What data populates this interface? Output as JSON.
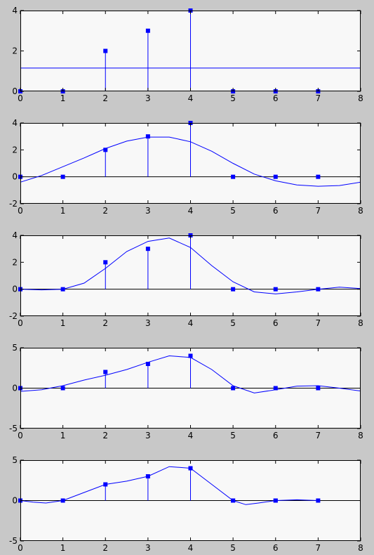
{
  "chart_data": [
    {
      "type": "stem",
      "xlim": [
        0,
        8
      ],
      "ylim": [
        0,
        4
      ],
      "xticks": [
        0,
        1,
        2,
        3,
        4,
        5,
        6,
        7,
        8
      ],
      "yticks": [
        0,
        2,
        4
      ],
      "stems": {
        "x": [
          0,
          1,
          2,
          3,
          4,
          5,
          6,
          7
        ],
        "y": [
          0,
          0,
          2,
          3,
          4,
          0,
          0,
          0
        ]
      },
      "points": [],
      "curve": [
        [
          0,
          1.15
        ],
        [
          8,
          1.15
        ]
      ]
    },
    {
      "type": "stem",
      "xlim": [
        0,
        8
      ],
      "ylim": [
        -2,
        4
      ],
      "xticks": [
        0,
        1,
        2,
        3,
        4,
        5,
        6,
        7,
        8
      ],
      "yticks": [
        -2,
        0,
        2,
        4
      ],
      "stems": {
        "x": [
          0,
          1,
          2,
          3,
          4,
          5,
          6,
          7
        ],
        "y": [
          0,
          0,
          2,
          3,
          4,
          0,
          0,
          0
        ]
      },
      "points": [],
      "curve": [
        [
          0,
          -0.4
        ],
        [
          0.5,
          0.1
        ],
        [
          1,
          0.75
        ],
        [
          1.5,
          1.4
        ],
        [
          2,
          2.1
        ],
        [
          2.5,
          2.65
        ],
        [
          3,
          2.95
        ],
        [
          3.5,
          2.95
        ],
        [
          4,
          2.6
        ],
        [
          4.5,
          1.9
        ],
        [
          5,
          1.0
        ],
        [
          5.5,
          0.2
        ],
        [
          6,
          -0.3
        ],
        [
          6.5,
          -0.6
        ],
        [
          7,
          -0.7
        ],
        [
          7.5,
          -0.65
        ],
        [
          8,
          -0.4
        ]
      ]
    },
    {
      "type": "stem",
      "xlim": [
        0,
        8
      ],
      "ylim": [
        -2,
        4
      ],
      "xticks": [
        0,
        1,
        2,
        3,
        4,
        5,
        6,
        7,
        8
      ],
      "yticks": [
        -2,
        0,
        2,
        4
      ],
      "stems": {
        "x": [
          0,
          1,
          2,
          3,
          4,
          5,
          6,
          7
        ],
        "y": [
          0,
          0,
          2,
          3,
          4,
          0,
          0,
          0
        ]
      },
      "points": [],
      "curve": [
        [
          0,
          0
        ],
        [
          0.5,
          -0.05
        ],
        [
          1,
          0
        ],
        [
          1.5,
          0.45
        ],
        [
          2,
          1.55
        ],
        [
          2.5,
          2.8
        ],
        [
          3,
          3.55
        ],
        [
          3.5,
          3.8
        ],
        [
          4,
          3.1
        ],
        [
          4.5,
          1.75
        ],
        [
          5,
          0.55
        ],
        [
          5.5,
          -0.2
        ],
        [
          6,
          -0.35
        ],
        [
          6.5,
          -0.2
        ],
        [
          7,
          0
        ],
        [
          7.5,
          0.15
        ],
        [
          8,
          0.05
        ]
      ]
    },
    {
      "type": "stem",
      "xlim": [
        0,
        8
      ],
      "ylim": [
        -5,
        5
      ],
      "xticks": [
        0,
        1,
        2,
        3,
        4,
        5,
        6,
        7,
        8
      ],
      "yticks": [
        -5,
        0,
        5
      ],
      "stems": {
        "x": [
          0,
          1,
          2,
          3,
          4,
          5,
          6,
          7
        ],
        "y": [
          0,
          0,
          2,
          3,
          4,
          0,
          0,
          0
        ]
      },
      "points": [],
      "curve": [
        [
          0,
          -0.4
        ],
        [
          0.5,
          -0.2
        ],
        [
          1,
          0.3
        ],
        [
          1.5,
          1.0
        ],
        [
          2,
          1.6
        ],
        [
          2.5,
          2.3
        ],
        [
          3,
          3.2
        ],
        [
          3.5,
          4.0
        ],
        [
          4,
          3.8
        ],
        [
          4.5,
          2.3
        ],
        [
          5,
          0.3
        ],
        [
          5.5,
          -0.6
        ],
        [
          6,
          -0.2
        ],
        [
          6.5,
          0.25
        ],
        [
          7,
          0.3
        ],
        [
          7.5,
          0.0
        ],
        [
          8,
          -0.35
        ]
      ]
    },
    {
      "type": "stem",
      "xlim": [
        0,
        8
      ],
      "ylim": [
        -5,
        5
      ],
      "xticks": [
        0,
        1,
        2,
        3,
        4,
        5,
        6,
        7,
        8
      ],
      "yticks": [
        -5,
        0,
        5
      ],
      "stems": {
        "x": [
          0,
          1,
          2,
          3,
          4,
          5,
          6,
          7
        ],
        "y": [
          0,
          0,
          2,
          3,
          4,
          0,
          0,
          0
        ]
      },
      "points": [
        {
          "x": 5,
          "y": 0
        },
        {
          "x": 6,
          "y": 0
        }
      ],
      "curve": [
        [
          0,
          0
        ],
        [
          0.3,
          -0.2
        ],
        [
          0.6,
          -0.3
        ],
        [
          1,
          0
        ],
        [
          1.5,
          1.0
        ],
        [
          2,
          2.0
        ],
        [
          2.5,
          2.4
        ],
        [
          3,
          3.0
        ],
        [
          3.5,
          4.2
        ],
        [
          4,
          4.0
        ],
        [
          4.5,
          2.0
        ],
        [
          5,
          0
        ],
        [
          5.3,
          -0.5
        ],
        [
          5.6,
          -0.3
        ],
        [
          6,
          0
        ],
        [
          6.5,
          0.1
        ],
        [
          7,
          0
        ]
      ]
    }
  ]
}
